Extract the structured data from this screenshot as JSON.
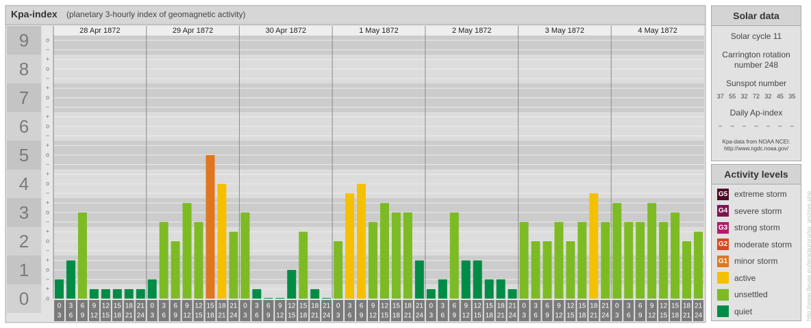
{
  "chart_data": {
    "type": "bar",
    "title": "Kpa-index",
    "subtitle": "(planetary 3-hourly index of geomagnetic activity)",
    "ylim": [
      0,
      9.5
    ],
    "yticks": [
      0,
      1,
      2,
      3,
      4,
      5,
      6,
      7,
      8,
      9
    ],
    "minor_yticks": [
      {
        "value": 9,
        "label": "o"
      },
      {
        "value": 8.67,
        "label": "–"
      },
      {
        "value": 8.33,
        "label": "+"
      },
      {
        "value": 8,
        "label": "o"
      },
      {
        "value": 7.67,
        "label": "–"
      },
      {
        "value": 7.33,
        "label": "+"
      },
      {
        "value": 7,
        "label": "o"
      },
      {
        "value": 6.67,
        "label": "–"
      },
      {
        "value": 6.33,
        "label": "+"
      },
      {
        "value": 6,
        "label": "o"
      },
      {
        "value": 5.67,
        "label": "–"
      },
      {
        "value": 5.33,
        "label": "+"
      },
      {
        "value": 5,
        "label": "o"
      },
      {
        "value": 4.67,
        "label": "–"
      },
      {
        "value": 4.33,
        "label": "+"
      },
      {
        "value": 4,
        "label": "o"
      },
      {
        "value": 3.67,
        "label": "–"
      },
      {
        "value": 3.33,
        "label": "+"
      },
      {
        "value": 3,
        "label": "o"
      },
      {
        "value": 2.67,
        "label": "–"
      },
      {
        "value": 2.33,
        "label": "+"
      },
      {
        "value": 2,
        "label": "o"
      },
      {
        "value": 1.67,
        "label": "–"
      },
      {
        "value": 1.33,
        "label": "+"
      },
      {
        "value": 1,
        "label": "o"
      },
      {
        "value": 0.67,
        "label": "–"
      },
      {
        "value": 0.33,
        "label": "+"
      },
      {
        "value": 0,
        "label": "o"
      }
    ],
    "periods": [
      [
        0,
        3
      ],
      [
        3,
        6
      ],
      [
        6,
        9
      ],
      [
        9,
        12
      ],
      [
        12,
        15
      ],
      [
        15,
        18
      ],
      [
        18,
        21
      ],
      [
        21,
        24
      ]
    ],
    "days": [
      {
        "date": "28 Apr 1872",
        "values": [
          0.67,
          1.33,
          3,
          0.33,
          0.33,
          0.33,
          0.33,
          0.33
        ],
        "colors": [
          "#008c46",
          "#008c46",
          "#7dbb24",
          "#008c46",
          "#008c46",
          "#008c46",
          "#008c46",
          "#008c46"
        ]
      },
      {
        "date": "29 Apr 1872",
        "values": [
          0.67,
          2.67,
          2,
          3.33,
          2.67,
          5,
          4,
          2.33
        ],
        "colors": [
          "#008c46",
          "#7dbb24",
          "#7dbb24",
          "#7dbb24",
          "#7dbb24",
          "#e0761e",
          "#f5c000",
          "#7dbb24"
        ]
      },
      {
        "date": "30 Apr 1872",
        "values": [
          3,
          0.33,
          0,
          0,
          1,
          2.33,
          0.33,
          0
        ],
        "colors": [
          "#7dbb24",
          "#008c46",
          "#008c46",
          "#008c46",
          "#008c46",
          "#7dbb24",
          "#008c46",
          "#008c46"
        ]
      },
      {
        "date": "1 May 1872",
        "values": [
          2,
          3.67,
          4,
          2.67,
          3.33,
          3,
          3,
          1.33
        ],
        "colors": [
          "#7dbb24",
          "#f5c000",
          "#f5c000",
          "#7dbb24",
          "#7dbb24",
          "#7dbb24",
          "#7dbb24",
          "#008c46"
        ]
      },
      {
        "date": "2 May 1872",
        "values": [
          0.33,
          0.67,
          3,
          1.33,
          1.33,
          0.67,
          0.67,
          0.33
        ],
        "colors": [
          "#008c46",
          "#008c46",
          "#7dbb24",
          "#008c46",
          "#008c46",
          "#008c46",
          "#008c46",
          "#008c46"
        ]
      },
      {
        "date": "3 May 1872",
        "values": [
          2.67,
          2,
          2,
          2.67,
          2,
          2.67,
          3.67,
          2.67
        ],
        "colors": [
          "#7dbb24",
          "#7dbb24",
          "#7dbb24",
          "#7dbb24",
          "#7dbb24",
          "#7dbb24",
          "#f5c000",
          "#7dbb24"
        ]
      },
      {
        "date": "4 May 1872",
        "values": [
          3.33,
          2.67,
          2.67,
          3.33,
          2.67,
          3,
          2,
          2.33
        ],
        "colors": [
          "#7dbb24",
          "#7dbb24",
          "#7dbb24",
          "#7dbb24",
          "#7dbb24",
          "#7dbb24",
          "#7dbb24",
          "#7dbb24"
        ]
      }
    ]
  },
  "solar_data": {
    "title": "Solar data",
    "cycle": "Solar cycle 11",
    "carrington": "Carrington rotation number 248",
    "sunspot_title": "Sunspot number",
    "sunspots": [
      37,
      55,
      32,
      72,
      32,
      45,
      35
    ],
    "ap_title": "Daily Ap-index",
    "ap": [
      "–",
      "–",
      "–",
      "–",
      "–",
      "–",
      "–"
    ],
    "note": [
      "Kpa-data from NOAA NCEI:",
      "http://www.ngdc.noaa.gov/"
    ]
  },
  "activity_levels": {
    "title": "Activity levels",
    "items": [
      {
        "badge": "G5",
        "label": "extreme storm",
        "color": "#4e0a26"
      },
      {
        "badge": "G4",
        "label": "severe storm",
        "color": "#7b1450"
      },
      {
        "badge": "G3",
        "label": "strong storm",
        "color": "#b01d6a"
      },
      {
        "badge": "G2",
        "label": "moderate storm",
        "color": "#d9481c"
      },
      {
        "badge": "G1",
        "label": "minor storm",
        "color": "#e0761e"
      },
      {
        "label": "active",
        "color": "#f5c000"
      },
      {
        "label": "unsettled",
        "color": "#7dbb24"
      },
      {
        "label": "quiet",
        "color": "#008c46"
      }
    ]
  },
  "watermark": "http://www.fleuse.eu/lera/aurora/kp_archive.php"
}
